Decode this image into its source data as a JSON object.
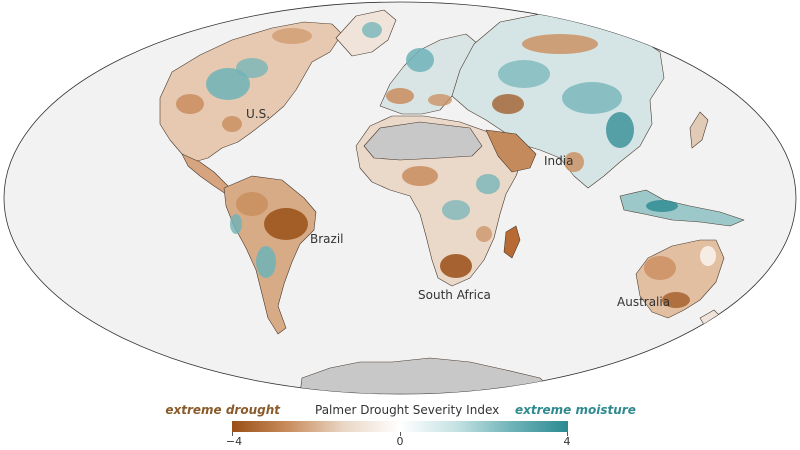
{
  "map": {
    "projection": "mollweide",
    "ocean_color": "#f2f2f2",
    "no_data_color": "#c8c8c8",
    "border_color": "#3a3a3a",
    "labels": {
      "us": "U.S.",
      "brazil": "Brazil",
      "south_africa": "South Africa",
      "india": "India",
      "australia": "Australia"
    }
  },
  "legend": {
    "title": "Palmer Drought Severity Index",
    "low_label": "extreme drought",
    "high_label": "extreme moisture",
    "low_color": "#8a5a2a",
    "high_color": "#2f8a8e",
    "scale_colors": [
      "#9a4f16",
      "#c98d5e",
      "#ead7c6",
      "#ffffff",
      "#c5e2e3",
      "#6fb3b8",
      "#2a8a91"
    ],
    "ticks": [
      "−4",
      "0",
      "4"
    ]
  }
}
